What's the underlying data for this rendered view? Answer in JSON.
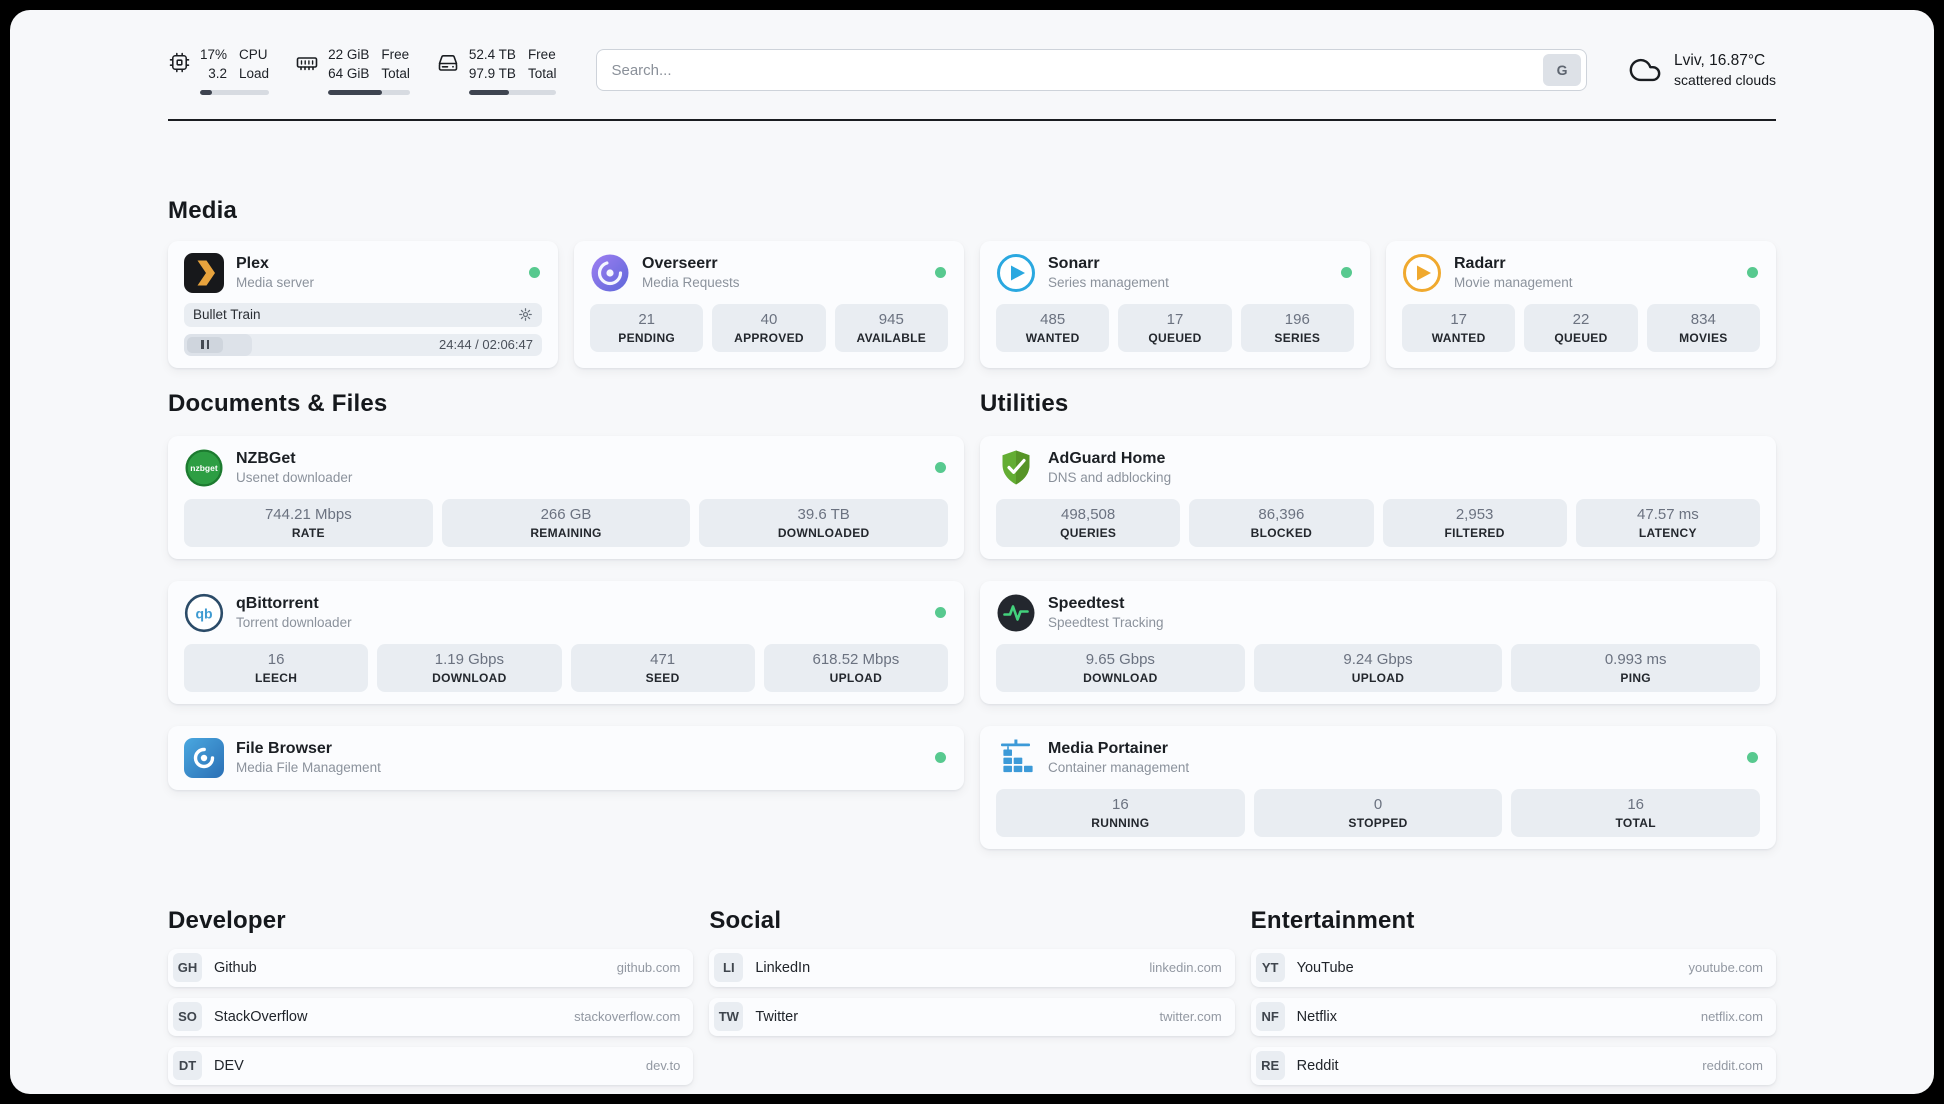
{
  "header": {
    "cpu": {
      "value_top": "17%",
      "value_bottom": "3.2",
      "label_top": "CPU",
      "label_bottom": "Load",
      "progress_pct": 17
    },
    "memory": {
      "value_top": "22 GiB",
      "value_bottom": "64 GiB",
      "label_top": "Free",
      "label_bottom": "Total",
      "progress_pct": 66
    },
    "storage": {
      "value_top": "52.4 TB",
      "value_bottom": "97.9 TB",
      "label_top": "Free",
      "label_bottom": "Total",
      "progress_pct": 46
    },
    "search": {
      "placeholder": "Search...",
      "engine_button": "G"
    },
    "weather": {
      "location_temp": "Lviv, 16.87°C",
      "condition": "scattered clouds"
    },
    "status_color": "#57c98f"
  },
  "media": {
    "title": "Media",
    "plex": {
      "name": "Plex",
      "subtitle": "Media server",
      "now_playing_title": "Bullet Train",
      "time_display": "24:44 / 02:06:47",
      "progress_pct": 19
    },
    "overseerr": {
      "name": "Overseerr",
      "subtitle": "Media Requests",
      "stats": [
        {
          "value": "21",
          "label": "PENDING"
        },
        {
          "value": "40",
          "label": "APPROVED"
        },
        {
          "value": "945",
          "label": "AVAILABLE"
        }
      ]
    },
    "sonarr": {
      "name": "Sonarr",
      "subtitle": "Series management",
      "stats": [
        {
          "value": "485",
          "label": "WANTED"
        },
        {
          "value": "17",
          "label": "QUEUED"
        },
        {
          "value": "196",
          "label": "SERIES"
        }
      ]
    },
    "radarr": {
      "name": "Radarr",
      "subtitle": "Movie management",
      "stats": [
        {
          "value": "17",
          "label": "WANTED"
        },
        {
          "value": "22",
          "label": "QUEUED"
        },
        {
          "value": "834",
          "label": "MOVIES"
        }
      ]
    }
  },
  "documents": {
    "title": "Documents & Files",
    "nzbget": {
      "name": "NZBGet",
      "subtitle": "Usenet downloader",
      "stats": [
        {
          "value": "744.21 Mbps",
          "label": "RATE"
        },
        {
          "value": "266 GB",
          "label": "REMAINING"
        },
        {
          "value": "39.6 TB",
          "label": "DOWNLOADED"
        }
      ]
    },
    "qbittorrent": {
      "name": "qBittorrent",
      "subtitle": "Torrent downloader",
      "stats": [
        {
          "value": "16",
          "label": "LEECH"
        },
        {
          "value": "1.19 Gbps",
          "label": "DOWNLOAD"
        },
        {
          "value": "471",
          "label": "SEED"
        },
        {
          "value": "618.52 Mbps",
          "label": "UPLOAD"
        }
      ]
    },
    "filebrowser": {
      "name": "File Browser",
      "subtitle": "Media File Management"
    }
  },
  "utilities": {
    "title": "Utilities",
    "adguard": {
      "name": "AdGuard Home",
      "subtitle": "DNS and adblocking",
      "stats": [
        {
          "value": "498,508",
          "label": "QUERIES"
        },
        {
          "value": "86,396",
          "label": "BLOCKED"
        },
        {
          "value": "2,953",
          "label": "FILTERED"
        },
        {
          "value": "47.57 ms",
          "label": "LATENCY"
        }
      ]
    },
    "speedtest": {
      "name": "Speedtest",
      "subtitle": "Speedtest Tracking",
      "stats": [
        {
          "value": "9.65 Gbps",
          "label": "DOWNLOAD"
        },
        {
          "value": "9.24 Gbps",
          "label": "UPLOAD"
        },
        {
          "value": "0.993 ms",
          "label": "PING"
        }
      ]
    },
    "portainer": {
      "name": "Media Portainer",
      "subtitle": "Container management",
      "stats": [
        {
          "value": "16",
          "label": "RUNNING"
        },
        {
          "value": "0",
          "label": "STOPPED"
        },
        {
          "value": "16",
          "label": "TOTAL"
        }
      ]
    }
  },
  "developer": {
    "title": "Developer",
    "bookmarks": [
      {
        "abbr": "GH",
        "name": "Github",
        "url": "github.com"
      },
      {
        "abbr": "SO",
        "name": "StackOverflow",
        "url": "stackoverflow.com"
      },
      {
        "abbr": "DT",
        "name": "DEV",
        "url": "dev.to"
      }
    ]
  },
  "social": {
    "title": "Social",
    "bookmarks": [
      {
        "abbr": "LI",
        "name": "LinkedIn",
        "url": "linkedin.com"
      },
      {
        "abbr": "TW",
        "name": "Twitter",
        "url": "twitter.com"
      }
    ]
  },
  "entertainment": {
    "title": "Entertainment",
    "bookmarks": [
      {
        "abbr": "YT",
        "name": "YouTube",
        "url": "youtube.com"
      },
      {
        "abbr": "NF",
        "name": "Netflix",
        "url": "netflix.com"
      },
      {
        "abbr": "RE",
        "name": "Reddit",
        "url": "reddit.com"
      }
    ]
  }
}
